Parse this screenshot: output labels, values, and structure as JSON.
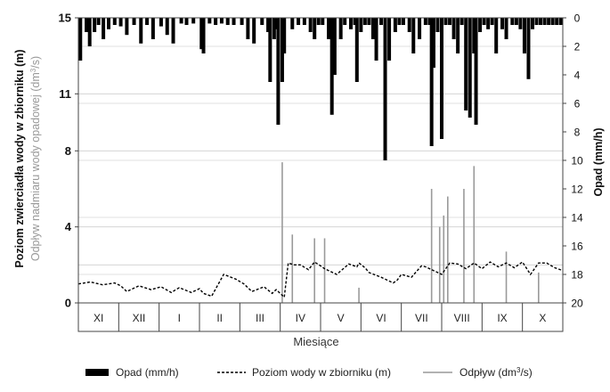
{
  "chart_data": {
    "type": "line",
    "xlabel": "Miesiące",
    "months": [
      "XI",
      "XII",
      "I",
      "II",
      "III",
      "IV",
      "V",
      "VI",
      "VII",
      "VIII",
      "IX",
      "X"
    ],
    "left_axis": {
      "label_line1": "Poziom zwierciadła wody w zbiorniku (m)",
      "label_line2_prefix": "Odpływ nadmiaru wody opadowej (dm",
      "label_line2_sup": "3",
      "label_line2_suffix": "/s)",
      "range": [
        0,
        15
      ],
      "ticks": [
        0,
        4,
        8,
        11,
        15
      ]
    },
    "right_axis": {
      "label": "Opad (mm/h)",
      "range": [
        0,
        20
      ],
      "inverted": true,
      "ticks": [
        0,
        2,
        4,
        6,
        8,
        10,
        12,
        14,
        16,
        18,
        20
      ]
    },
    "grid": true,
    "legend": {
      "position": "bottom",
      "items": [
        {
          "key": "rain",
          "label": "Opad (mm/h)",
          "color": "#000000",
          "style": "bar"
        },
        {
          "key": "level",
          "label": "Poziom wody w zbiorniku (m)",
          "color": "#000000",
          "style": "dashed"
        },
        {
          "key": "outflow",
          "label_prefix": "Odpływ (dm",
          "label_sup": "3",
          "label_suffix": "/s)",
          "color": "#999999",
          "style": "solid"
        }
      ]
    },
    "series": [
      {
        "name": "Opad (mm/h)",
        "axis": "right",
        "x_month": [
          0.05,
          0.2,
          0.28,
          0.4,
          0.5,
          0.62,
          0.75,
          0.9,
          1.05,
          1.2,
          1.38,
          1.55,
          1.7,
          1.85,
          2.05,
          2.2,
          2.35,
          2.55,
          2.68,
          2.85,
          3.05,
          3.1,
          3.25,
          3.4,
          3.55,
          3.7,
          3.85,
          4.05,
          4.2,
          4.35,
          4.55,
          4.7,
          4.75,
          4.85,
          4.9,
          4.95,
          5.05,
          5.1,
          5.3,
          5.45,
          5.6,
          5.75,
          5.85,
          5.95,
          6.05,
          6.2,
          6.28,
          6.35,
          6.5,
          6.6,
          6.75,
          6.85,
          6.9,
          7.0,
          7.1,
          7.2,
          7.3,
          7.38,
          7.5,
          7.6,
          7.7,
          7.85,
          7.95,
          8.05,
          8.2,
          8.3,
          8.45,
          8.6,
          8.7,
          8.75,
          8.8,
          8.9,
          9.0,
          9.1,
          9.2,
          9.3,
          9.4,
          9.5,
          9.6,
          9.7,
          9.8,
          9.85,
          9.95,
          10.05,
          10.15,
          10.25,
          10.35,
          10.5,
          10.6,
          10.75,
          10.85,
          10.95,
          11.05,
          11.15,
          11.25,
          11.35,
          11.45,
          11.55,
          11.65,
          11.75,
          11.85,
          11.95
        ],
        "values": [
          3.0,
          1.0,
          2.0,
          1.0,
          0.5,
          1.5,
          0.8,
          0.5,
          0.6,
          1.2,
          0.5,
          1.8,
          0.5,
          1.5,
          0.6,
          1.2,
          1.8,
          0.4,
          0.5,
          0.4,
          2.2,
          2.5,
          0.4,
          0.5,
          0.4,
          0.5,
          0.5,
          0.5,
          1.5,
          1.8,
          0.5,
          1.0,
          4.5,
          1.5,
          0.8,
          7.5,
          4.5,
          2.5,
          0.8,
          0.5,
          0.5,
          1.0,
          1.5,
          0.5,
          0.5,
          1.5,
          6.8,
          4.0,
          1.5,
          0.5,
          0.8,
          0.5,
          4.5,
          1.0,
          0.5,
          0.5,
          1.5,
          3.0,
          0.5,
          10.0,
          3.0,
          1.0,
          0.5,
          0.5,
          1.0,
          2.5,
          1.5,
          0.5,
          0.5,
          9.0,
          3.5,
          1.0,
          8.5,
          0.5,
          0.5,
          1.5,
          2.5,
          0.5,
          6.5,
          7.0,
          2.5,
          7.5,
          1.0,
          0.5,
          0.8,
          0.5,
          2.5,
          0.8,
          1.5,
          0.5,
          0.5,
          0.8,
          2.5,
          4.3,
          0.8,
          0.5,
          0.5,
          0.5,
          0.5,
          0.5,
          0.5,
          0.5
        ]
      },
      {
        "name": "Poziom wody w zbiorniku (m)",
        "axis": "left",
        "x_month": [
          0.0,
          0.3,
          0.6,
          0.9,
          1.05,
          1.2,
          1.5,
          1.8,
          2.05,
          2.3,
          2.5,
          2.8,
          3.0,
          3.1,
          3.3,
          3.6,
          3.9,
          4.1,
          4.3,
          4.6,
          4.8,
          4.9,
          5.1,
          5.2,
          5.35,
          5.5,
          5.7,
          5.85,
          6.0,
          6.1,
          6.4,
          6.7,
          6.9,
          6.95,
          7.1,
          7.2,
          7.5,
          7.8,
          7.9,
          8.0,
          8.25,
          8.5,
          8.6,
          8.8,
          9.0,
          9.2,
          9.4,
          9.6,
          9.8,
          10.0,
          10.2,
          10.4,
          10.6,
          10.8,
          11.0,
          11.2,
          11.4,
          11.6,
          11.8,
          12.0
        ],
        "values": [
          1.0,
          1.1,
          0.95,
          1.05,
          0.9,
          0.6,
          0.9,
          0.7,
          0.85,
          0.55,
          0.8,
          0.55,
          0.75,
          0.5,
          0.35,
          1.5,
          1.25,
          1.0,
          0.6,
          0.85,
          0.5,
          0.7,
          0.3,
          2.1,
          2.0,
          2.0,
          1.75,
          2.15,
          1.95,
          1.8,
          1.5,
          2.05,
          1.9,
          2.1,
          1.85,
          1.6,
          1.35,
          1.05,
          1.2,
          1.5,
          1.35,
          1.95,
          1.9,
          1.7,
          1.5,
          2.1,
          2.05,
          1.8,
          2.1,
          1.8,
          2.15,
          1.9,
          2.1,
          1.85,
          2.15,
          1.5,
          2.1,
          2.1,
          1.85,
          1.7
        ]
      },
      {
        "name": "Odpływ (dm³/s)",
        "axis": "left",
        "x_month": [
          5.05,
          5.3,
          5.85,
          6.1,
          6.95,
          8.75,
          8.95,
          9.05,
          9.15,
          9.55,
          9.8,
          10.6,
          11.4
        ],
        "values": [
          7.4,
          3.6,
          3.4,
          3.4,
          0.8,
          6.0,
          4.0,
          4.6,
          5.6,
          6.0,
          7.2,
          2.7,
          1.6
        ]
      }
    ]
  }
}
